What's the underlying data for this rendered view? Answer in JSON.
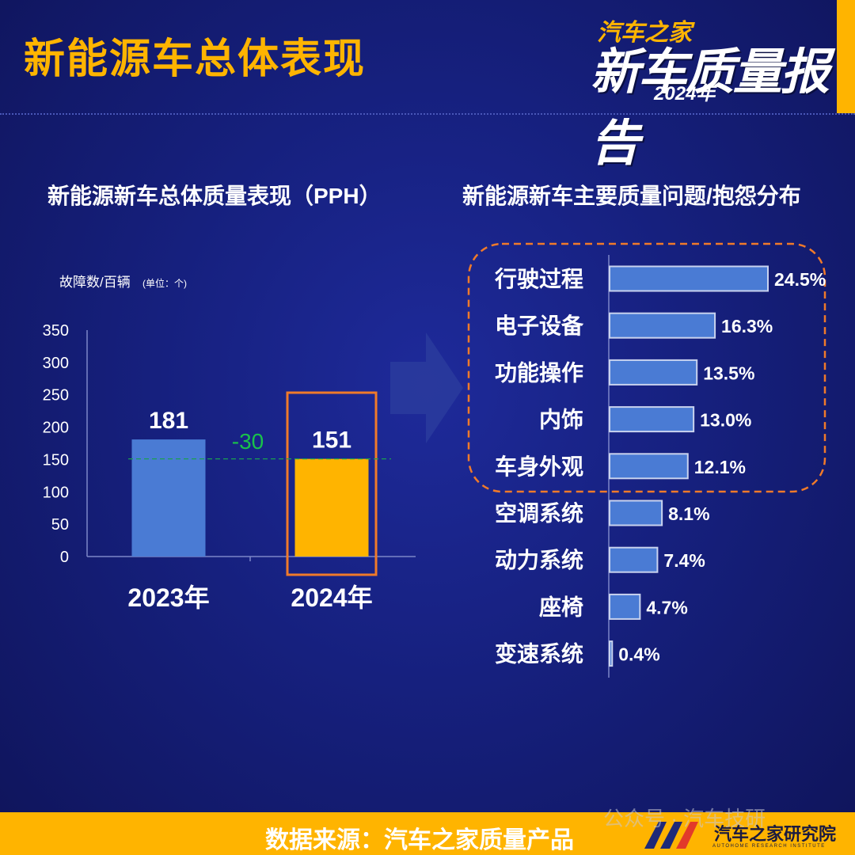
{
  "header": {
    "title": "新能源车总体表现",
    "logo": {
      "top": "汽车之家",
      "main": "新车质量报告",
      "year": "2024年"
    }
  },
  "left_panel": {
    "title": "新能源新车总体质量表现（PPH）"
  },
  "right_panel": {
    "title": "新能源新车主要质量问题/抱怨分布"
  },
  "footer": {
    "source": "数据来源：汽车之家质量产品",
    "org": "汽车之家研究院",
    "org_en": "AUTOHOME RESEARCH INSTITUTE",
    "watermark": "公众号 · 汽车技研"
  },
  "colors": {
    "accent": "#ffb400",
    "bar_blue": "#4a7bd4",
    "delta_green": "#19c24a",
    "highlight": "#f07a2a"
  },
  "chart_data": [
    {
      "type": "bar",
      "title": "新能源新车总体质量表现（PPH）",
      "ylabel": "故障数/百辆",
      "yunit": "(单位：个)",
      "categories": [
        "2023年",
        "2024年"
      ],
      "values": [
        181,
        151
      ],
      "value_labels": [
        "181",
        "151"
      ],
      "ylim": [
        0,
        350
      ],
      "yticks": [
        0,
        50,
        100,
        150,
        200,
        250,
        300,
        350
      ],
      "ytick_labels": [
        "0",
        "50",
        "100",
        "150",
        "200",
        "250",
        "300",
        "350"
      ],
      "delta_label": "-30",
      "highlight": "2024年"
    },
    {
      "type": "bar",
      "orientation": "horizontal",
      "title": "新能源新车主要质量问题/抱怨分布",
      "categories": [
        "行驶过程",
        "电子设备",
        "功能操作",
        "内饰",
        "车身外观",
        "空调系统",
        "动力系统",
        "座椅",
        "变速系统"
      ],
      "values": [
        24.5,
        16.3,
        13.5,
        13.0,
        12.1,
        8.1,
        7.4,
        4.7,
        0.4
      ],
      "value_labels": [
        "24.5%",
        "16.3%",
        "13.5%",
        "13.0%",
        "12.1%",
        "8.1%",
        "7.4%",
        "4.7%",
        "0.4%"
      ],
      "highlight_top_n": 5
    }
  ]
}
